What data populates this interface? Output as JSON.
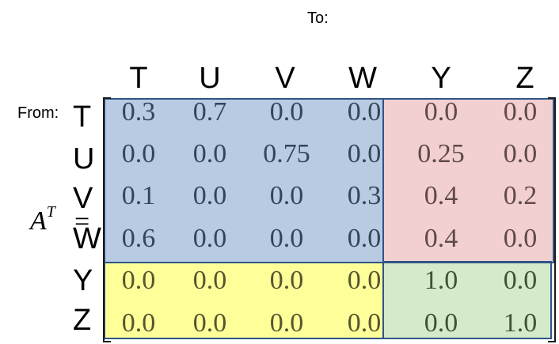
{
  "to_label": "To:",
  "from_label": "From:",
  "matrix_name": "A",
  "matrix_sup": "T",
  "equals": "=",
  "columns": [
    "T",
    "U",
    "V",
    "W",
    "Y",
    "Z"
  ],
  "rows": [
    "T",
    "U",
    "V",
    "W",
    "Y",
    "Z"
  ],
  "values": [
    [
      "0.3",
      "0.7",
      "0.0",
      "0.0",
      "0.0",
      "0.0"
    ],
    [
      "0.0",
      "0.0",
      "0.75",
      "0.0",
      "0.25",
      "0.0"
    ],
    [
      "0.1",
      "0.0",
      "0.0",
      "0.3",
      "0.4",
      "0.2"
    ],
    [
      "0.6",
      "0.0",
      "0.0",
      "0.0",
      "0.4",
      "0.0"
    ],
    [
      "0.0",
      "0.0",
      "0.0",
      "0.0",
      "1.0",
      "0.0"
    ],
    [
      "0.0",
      "0.0",
      "0.0",
      "0.0",
      "0.0",
      "1.0"
    ]
  ],
  "colors": {
    "transient_block": "#b9cbe3",
    "absorbing_transition_block": "#f2d0d0",
    "zero_block": "#ffff99",
    "identity_block": "#d4eacb",
    "border": "#2f5587",
    "blue_text": "#33445e",
    "pink_text": "#5e4a48",
    "yellow_text": "#555530",
    "green_text": "#3a5530"
  }
}
